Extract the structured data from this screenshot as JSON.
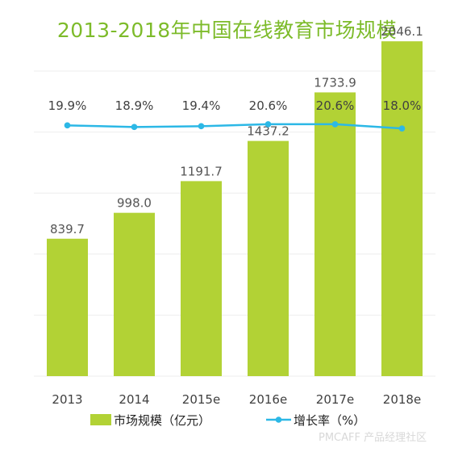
{
  "colors": {
    "title": "#7dbb2a",
    "bar": "#b2d235",
    "line": "#2cb8e6",
    "grid": "#eeeeee",
    "text": "#404040"
  },
  "chart_data": {
    "type": "bar",
    "title": "2013-2018年中国在线教育市场规模",
    "categories": [
      "2013",
      "2014",
      "2015e",
      "2016e",
      "2017e",
      "2018e"
    ],
    "series": [
      {
        "name": "市场规模（亿元）",
        "type": "bar",
        "values": [
          839.7,
          998.0,
          1191.7,
          1437.2,
          1733.9,
          2046.1
        ],
        "labels": [
          "839.7",
          "998.0",
          "1191.7",
          "1437.2",
          "1733.9",
          "2046.1"
        ]
      },
      {
        "name": "增长率（%）",
        "type": "line",
        "values": [
          19.9,
          18.9,
          19.4,
          20.6,
          20.6,
          18.0
        ],
        "labels": [
          "19.9%",
          "18.9%",
          "19.4%",
          "20.6%",
          "20.6%",
          "18.0%"
        ]
      }
    ],
    "grid": true,
    "legend_position": "bottom"
  },
  "watermark": "PMCAFF 产品经理社区"
}
